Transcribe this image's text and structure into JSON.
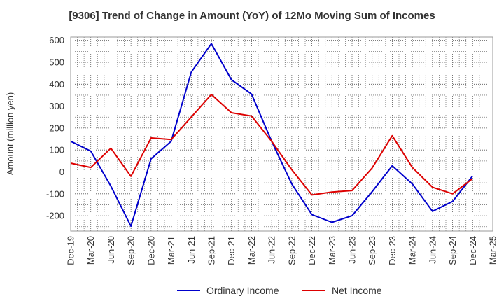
{
  "chart_data": {
    "type": "line",
    "title": "[9306]  Trend of Change in Amount (YoY) of 12Mo Moving Sum of Incomes",
    "ylabel": "Amount (million yen)",
    "xlabel": "",
    "ylim": [
      -270,
      615
    ],
    "yticks": [
      600,
      500,
      400,
      300,
      200,
      100,
      0,
      -100,
      -200
    ],
    "grid": true,
    "legend_position": "bottom",
    "categories": [
      "Dec-19",
      "Mar-20",
      "Jun-20",
      "Sep-20",
      "Dec-20",
      "Mar-21",
      "Jun-21",
      "Sep-21",
      "Dec-21",
      "Mar-22",
      "Jun-22",
      "Sep-22",
      "Dec-22",
      "Mar-23",
      "Jun-23",
      "Sep-23",
      "Dec-23",
      "Mar-24",
      "Jun-24",
      "Sep-24",
      "Dec-24",
      "Mar-25"
    ],
    "series": [
      {
        "name": "Ordinary Income",
        "color": "#0000cc",
        "values": [
          140,
          95,
          -65,
          -248,
          60,
          140,
          455,
          585,
          420,
          355,
          140,
          -55,
          -195,
          -230,
          -200,
          -90,
          28,
          -55,
          -180,
          -135,
          -18,
          null
        ]
      },
      {
        "name": "Net Income",
        "color": "#dd0000",
        "values": [
          40,
          20,
          108,
          -20,
          155,
          148,
          250,
          353,
          270,
          255,
          140,
          10,
          -105,
          -92,
          -85,
          18,
          165,
          20,
          -70,
          -100,
          -30,
          null
        ]
      }
    ]
  }
}
